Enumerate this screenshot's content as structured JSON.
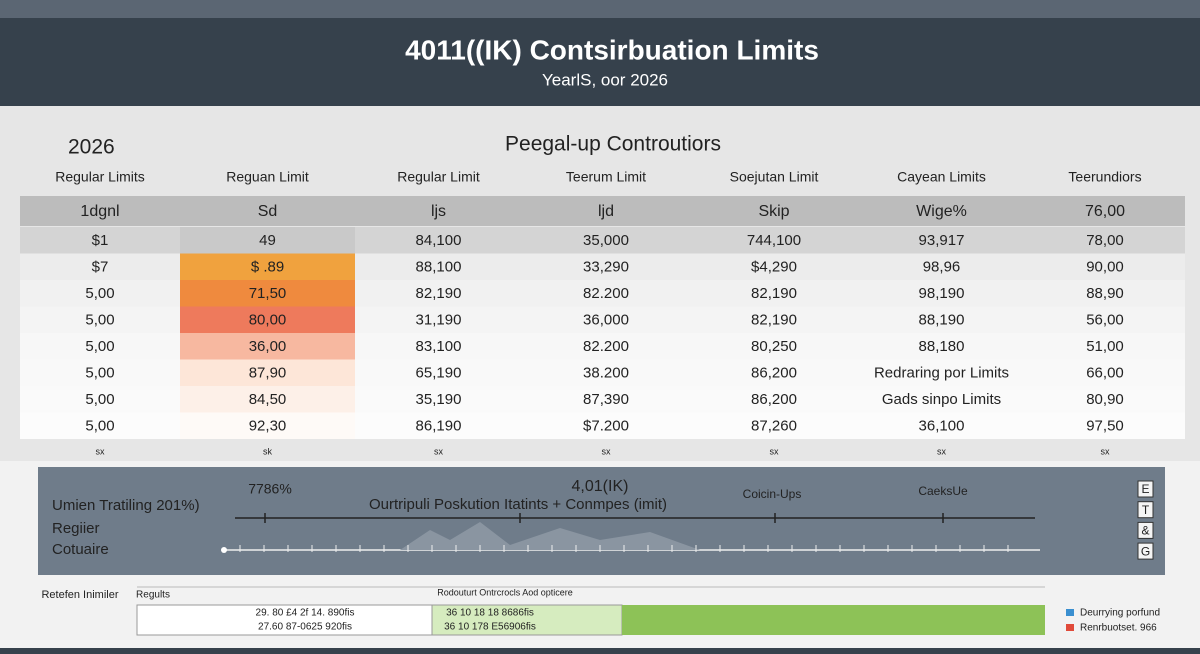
{
  "header": {
    "title": "4011((IK)  Contsirbuation Limits",
    "subtitle": "YearlS, oor 2026"
  },
  "section": {
    "year": "2026",
    "title": "Peegal-up Controutiors"
  },
  "table": {
    "columns": [
      "Regular Limits",
      "Reguan Limit",
      "Regular Limit",
      "Teerum Limit",
      "Soejutan Limit",
      "Cayean Limits",
      "Teerundiors"
    ],
    "header_row": [
      "1dgnl",
      "Sd",
      "ljs",
      "ljd",
      "Skip",
      "Wige%",
      "76,00"
    ],
    "rows": [
      [
        "$1",
        "49",
        "84,100",
        "35,000",
        "744,100",
        "93,917",
        "78,00"
      ],
      [
        "$7",
        "$ .89",
        "88,100",
        "33,290",
        "$4,290",
        "98,96",
        "90,00"
      ],
      [
        "5,00",
        "71,50",
        "82,190",
        "82.200",
        "82,190",
        "98,190",
        "88,90"
      ],
      [
        "5,00",
        "80,00",
        "31,190",
        "36,000",
        "82,190",
        "88,190",
        "56,00"
      ],
      [
        "5,00",
        "36,00",
        "83,100",
        "82.200",
        "80,250",
        "88,180",
        "51,00"
      ],
      [
        "5,00",
        "87,90",
        "65,190",
        "38.200",
        "86,200",
        "Redraring por Limits",
        "66,00"
      ],
      [
        "5,00",
        "84,50",
        "35,190",
        "87,390",
        "86,200",
        "Gads sinpo Limits",
        "80,90"
      ],
      [
        "5,00",
        "92,30",
        "86,190",
        "$7.200",
        "87,260",
        "36,100",
        "97,50"
      ]
    ],
    "footer": [
      "sx",
      "sk",
      "sx",
      "sx",
      "sx",
      "sx",
      "sx"
    ]
  },
  "timeline": {
    "labels": [
      "Umien Tratiling 201%)",
      "Regiier",
      "Cotuaire"
    ],
    "pct": "7786%",
    "title": "4,01(IK)",
    "subtitle": "Ourtripuli Poskution Itatints + Conmpes (imit)",
    "mark_a": "Coicin-Ups",
    "mark_b": "CaeksUe",
    "keys": [
      "E",
      "T",
      "&",
      "G"
    ]
  },
  "bottom": {
    "label": "Retefen Inimiler",
    "results": "Regults",
    "section": "Rodouturt Ontrcrocls Aod opticere",
    "left_lines": [
      "29. 80 £4 2f 14. 890fis",
      "27.60 87-0625 920fis"
    ],
    "mid_lines": [
      "36 10 18 18 8686fis",
      "36 10 178 E56906fis"
    ],
    "legend": [
      "Deurrying porfund",
      "Renrbuotset. 966"
    ]
  }
}
